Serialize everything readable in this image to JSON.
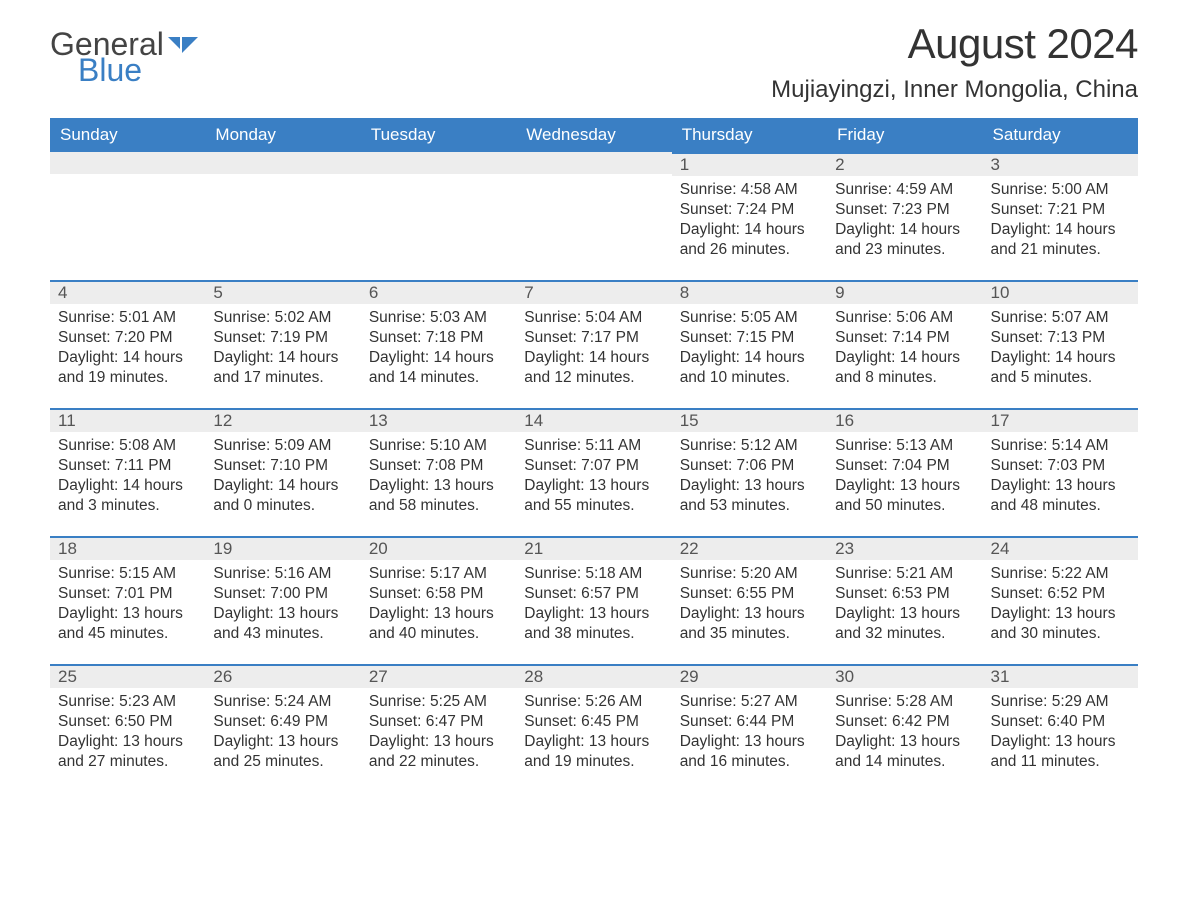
{
  "logo": {
    "word1": "General",
    "word2": "Blue",
    "icon_color": "#3a7fc4",
    "text_color": "#444444"
  },
  "title": "August 2024",
  "location": "Mujiayingzi, Inner Mongolia, China",
  "colors": {
    "header_bg": "#3a7fc4",
    "header_text": "#ffffff",
    "daynum_bg": "#ededed",
    "daynum_border": "#3a7fc4",
    "body_text": "#333333",
    "page_bg": "#ffffff"
  },
  "day_headers": [
    "Sunday",
    "Monday",
    "Tuesday",
    "Wednesday",
    "Thursday",
    "Friday",
    "Saturday"
  ],
  "weeks": [
    [
      null,
      null,
      null,
      null,
      {
        "n": "1",
        "sunrise": "4:58 AM",
        "sunset": "7:24 PM",
        "daylight": "14 hours and 26 minutes."
      },
      {
        "n": "2",
        "sunrise": "4:59 AM",
        "sunset": "7:23 PM",
        "daylight": "14 hours and 23 minutes."
      },
      {
        "n": "3",
        "sunrise": "5:00 AM",
        "sunset": "7:21 PM",
        "daylight": "14 hours and 21 minutes."
      }
    ],
    [
      {
        "n": "4",
        "sunrise": "5:01 AM",
        "sunset": "7:20 PM",
        "daylight": "14 hours and 19 minutes."
      },
      {
        "n": "5",
        "sunrise": "5:02 AM",
        "sunset": "7:19 PM",
        "daylight": "14 hours and 17 minutes."
      },
      {
        "n": "6",
        "sunrise": "5:03 AM",
        "sunset": "7:18 PM",
        "daylight": "14 hours and 14 minutes."
      },
      {
        "n": "7",
        "sunrise": "5:04 AM",
        "sunset": "7:17 PM",
        "daylight": "14 hours and 12 minutes."
      },
      {
        "n": "8",
        "sunrise": "5:05 AM",
        "sunset": "7:15 PM",
        "daylight": "14 hours and 10 minutes."
      },
      {
        "n": "9",
        "sunrise": "5:06 AM",
        "sunset": "7:14 PM",
        "daylight": "14 hours and 8 minutes."
      },
      {
        "n": "10",
        "sunrise": "5:07 AM",
        "sunset": "7:13 PM",
        "daylight": "14 hours and 5 minutes."
      }
    ],
    [
      {
        "n": "11",
        "sunrise": "5:08 AM",
        "sunset": "7:11 PM",
        "daylight": "14 hours and 3 minutes."
      },
      {
        "n": "12",
        "sunrise": "5:09 AM",
        "sunset": "7:10 PM",
        "daylight": "14 hours and 0 minutes."
      },
      {
        "n": "13",
        "sunrise": "5:10 AM",
        "sunset": "7:08 PM",
        "daylight": "13 hours and 58 minutes."
      },
      {
        "n": "14",
        "sunrise": "5:11 AM",
        "sunset": "7:07 PM",
        "daylight": "13 hours and 55 minutes."
      },
      {
        "n": "15",
        "sunrise": "5:12 AM",
        "sunset": "7:06 PM",
        "daylight": "13 hours and 53 minutes."
      },
      {
        "n": "16",
        "sunrise": "5:13 AM",
        "sunset": "7:04 PM",
        "daylight": "13 hours and 50 minutes."
      },
      {
        "n": "17",
        "sunrise": "5:14 AM",
        "sunset": "7:03 PM",
        "daylight": "13 hours and 48 minutes."
      }
    ],
    [
      {
        "n": "18",
        "sunrise": "5:15 AM",
        "sunset": "7:01 PM",
        "daylight": "13 hours and 45 minutes."
      },
      {
        "n": "19",
        "sunrise": "5:16 AM",
        "sunset": "7:00 PM",
        "daylight": "13 hours and 43 minutes."
      },
      {
        "n": "20",
        "sunrise": "5:17 AM",
        "sunset": "6:58 PM",
        "daylight": "13 hours and 40 minutes."
      },
      {
        "n": "21",
        "sunrise": "5:18 AM",
        "sunset": "6:57 PM",
        "daylight": "13 hours and 38 minutes."
      },
      {
        "n": "22",
        "sunrise": "5:20 AM",
        "sunset": "6:55 PM",
        "daylight": "13 hours and 35 minutes."
      },
      {
        "n": "23",
        "sunrise": "5:21 AM",
        "sunset": "6:53 PM",
        "daylight": "13 hours and 32 minutes."
      },
      {
        "n": "24",
        "sunrise": "5:22 AM",
        "sunset": "6:52 PM",
        "daylight": "13 hours and 30 minutes."
      }
    ],
    [
      {
        "n": "25",
        "sunrise": "5:23 AM",
        "sunset": "6:50 PM",
        "daylight": "13 hours and 27 minutes."
      },
      {
        "n": "26",
        "sunrise": "5:24 AM",
        "sunset": "6:49 PM",
        "daylight": "13 hours and 25 minutes."
      },
      {
        "n": "27",
        "sunrise": "5:25 AM",
        "sunset": "6:47 PM",
        "daylight": "13 hours and 22 minutes."
      },
      {
        "n": "28",
        "sunrise": "5:26 AM",
        "sunset": "6:45 PM",
        "daylight": "13 hours and 19 minutes."
      },
      {
        "n": "29",
        "sunrise": "5:27 AM",
        "sunset": "6:44 PM",
        "daylight": "13 hours and 16 minutes."
      },
      {
        "n": "30",
        "sunrise": "5:28 AM",
        "sunset": "6:42 PM",
        "daylight": "13 hours and 14 minutes."
      },
      {
        "n": "31",
        "sunrise": "5:29 AM",
        "sunset": "6:40 PM",
        "daylight": "13 hours and 11 minutes."
      }
    ]
  ],
  "labels": {
    "sunrise": "Sunrise: ",
    "sunset": "Sunset: ",
    "daylight": "Daylight: "
  }
}
